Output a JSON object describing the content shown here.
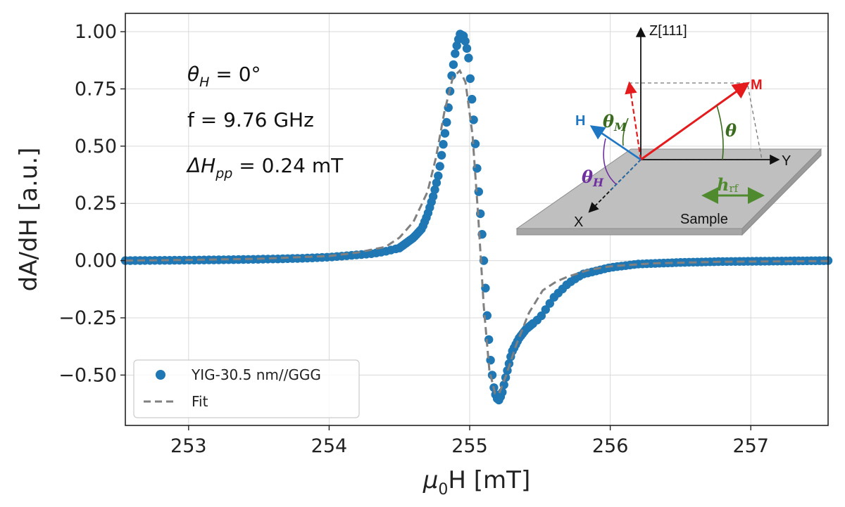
{
  "chart_data": {
    "type": "scatter",
    "xlabel_base": "μ",
    "xlabel_sub": "0",
    "xlabel_rest": "H [mT]",
    "ylabel": "dA/dH [a.u.]",
    "xlim": [
      252.55,
      257.55
    ],
    "ylim": [
      -0.72,
      1.08
    ],
    "x_ticks": [
      253,
      254,
      255,
      256,
      257
    ],
    "y_ticks": [
      1.0,
      0.75,
      0.5,
      0.25,
      0.0,
      -0.25,
      -0.5
    ],
    "x_tick_labels": [
      "253",
      "254",
      "255",
      "256",
      "257"
    ],
    "y_tick_labels": [
      "1.00",
      "0.75",
      "0.50",
      "0.25",
      "0.00",
      "−0.25",
      "−0.50"
    ],
    "grid": true,
    "legend_position": "lower-left",
    "series": [
      {
        "name": "YIG-30.5 nm//GGG",
        "kind": "scatter",
        "color": "#1f77b4",
        "points": [
          [
            252.55,
            0.0
          ],
          [
            252.8,
            0.001
          ],
          [
            253.0,
            0.002
          ],
          [
            253.3,
            0.004
          ],
          [
            253.6,
            0.007
          ],
          [
            253.8,
            0.01
          ],
          [
            254.0,
            0.015
          ],
          [
            254.2,
            0.025
          ],
          [
            254.3,
            0.03
          ],
          [
            254.4,
            0.04
          ],
          [
            254.5,
            0.055
          ],
          [
            254.6,
            0.1
          ],
          [
            254.66,
            0.14
          ],
          [
            254.7,
            0.2
          ],
          [
            254.74,
            0.28
          ],
          [
            254.78,
            0.38
          ],
          [
            254.81,
            0.5
          ],
          [
            254.84,
            0.62
          ],
          [
            254.87,
            0.8
          ],
          [
            254.9,
            0.92
          ],
          [
            254.93,
            0.99
          ],
          [
            254.96,
            0.98
          ],
          [
            254.99,
            0.9
          ],
          [
            255.01,
            0.75
          ],
          [
            255.03,
            0.6
          ],
          [
            255.05,
            0.42
          ],
          [
            255.07,
            0.25
          ],
          [
            255.09,
            0.1
          ],
          [
            255.11,
            -0.1
          ],
          [
            255.13,
            -0.3
          ],
          [
            255.15,
            -0.45
          ],
          [
            255.17,
            -0.55
          ],
          [
            255.19,
            -0.6
          ],
          [
            255.21,
            -0.61
          ],
          [
            255.23,
            -0.58
          ],
          [
            255.26,
            -0.5
          ],
          [
            255.3,
            -0.4
          ],
          [
            255.35,
            -0.34
          ],
          [
            255.4,
            -0.3
          ],
          [
            255.5,
            -0.25
          ],
          [
            255.6,
            -0.16
          ],
          [
            255.7,
            -0.1
          ],
          [
            255.8,
            -0.06
          ],
          [
            256.0,
            -0.03
          ],
          [
            256.2,
            -0.015
          ],
          [
            256.5,
            -0.008
          ],
          [
            256.8,
            -0.004
          ],
          [
            257.2,
            -0.002
          ],
          [
            257.55,
            0.0
          ]
        ]
      },
      {
        "name": "Fit",
        "kind": "line",
        "color": "#808080",
        "points": [
          [
            252.55,
            0.0
          ],
          [
            253.0,
            0.003
          ],
          [
            253.5,
            0.008
          ],
          [
            254.0,
            0.02
          ],
          [
            254.2,
            0.035
          ],
          [
            254.4,
            0.06
          ],
          [
            254.5,
            0.1
          ],
          [
            254.6,
            0.17
          ],
          [
            254.7,
            0.3
          ],
          [
            254.76,
            0.45
          ],
          [
            254.82,
            0.65
          ],
          [
            254.88,
            0.8
          ],
          [
            254.93,
            0.83
          ],
          [
            254.97,
            0.78
          ],
          [
            255.02,
            0.55
          ],
          [
            255.06,
            0.2
          ],
          [
            255.1,
            -0.2
          ],
          [
            255.14,
            -0.48
          ],
          [
            255.18,
            -0.58
          ],
          [
            255.21,
            -0.58
          ],
          [
            255.26,
            -0.5
          ],
          [
            255.33,
            -0.37
          ],
          [
            255.42,
            -0.23
          ],
          [
            255.52,
            -0.13
          ],
          [
            255.62,
            -0.09
          ],
          [
            255.7,
            -0.07
          ],
          [
            255.85,
            -0.04
          ],
          [
            256.0,
            -0.025
          ],
          [
            256.3,
            -0.012
          ],
          [
            256.8,
            -0.005
          ],
          [
            257.55,
            -0.002
          ]
        ]
      }
    ],
    "annotations": {
      "theta_h_symbol": "θ",
      "theta_h_sub": "H",
      "theta_h_rest": " = 0°",
      "frequency": "f = 9.76 GHz",
      "linewidth_symbol": "ΔH",
      "linewidth_sub": "pp",
      "linewidth_rest": " = 0.24 mT"
    }
  },
  "inset": {
    "z_axis_label": "Z[111]",
    "y_axis_label": "Y",
    "x_axis_label": "X",
    "m_label": "M",
    "h_label": "H",
    "theta_m_symbol": "θ",
    "theta_m_sub": "M",
    "theta_symbol": "θ",
    "theta_h_symbol": "θ",
    "theta_h_sub": "H",
    "hrf_symbol": "h",
    "hrf_sub": "rf",
    "sample_label": "Sample",
    "colors": {
      "m": "#e41a1c",
      "h": "#1f77c4",
      "theta_m": "#3a6b1e",
      "theta_h": "#7030a0",
      "hrf": "#4f8a2e",
      "plate": "#bfbfbf"
    }
  }
}
